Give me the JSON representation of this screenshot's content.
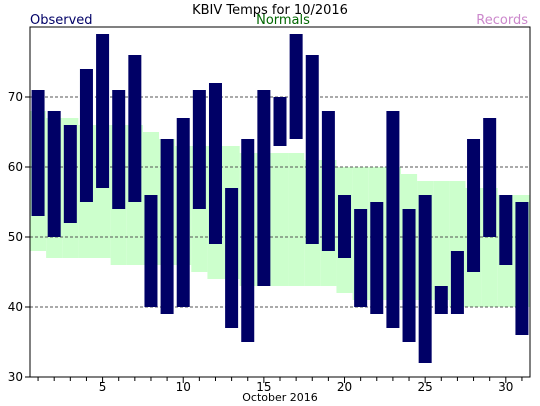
{
  "chart_data": {
    "type": "bar",
    "title": "KBIV Temps for 10/2016",
    "legend": [
      "Observed",
      "Normals",
      "Records"
    ],
    "xlabel": "October 2016",
    "ylabel": "",
    "ylim": [
      30,
      80
    ],
    "yticks": [
      30,
      40,
      50,
      60,
      70
    ],
    "xlim": [
      0.5,
      31.5
    ],
    "xticks": [
      5,
      10,
      15,
      20,
      25,
      30
    ],
    "grid": "dashed horizontal",
    "colors": {
      "observed": "#000066",
      "normals_fill": "#ccffcc",
      "normals_text": "#006600",
      "records_text": "#cc88cc"
    },
    "days": [
      1,
      2,
      3,
      4,
      5,
      6,
      7,
      8,
      9,
      10,
      11,
      12,
      13,
      14,
      15,
      16,
      17,
      18,
      19,
      20,
      21,
      22,
      23,
      24,
      25,
      26,
      27,
      28,
      29,
      30,
      31
    ],
    "series": [
      {
        "name": "Observed",
        "low": [
          53,
          50,
          52,
          55,
          57,
          54,
          55,
          40,
          39,
          40,
          54,
          49,
          37,
          35,
          43,
          63,
          64,
          49,
          48,
          47,
          40,
          39,
          37,
          35,
          32,
          39,
          39,
          45,
          50,
          46,
          36
        ],
        "high": [
          71,
          68,
          66,
          74,
          79,
          71,
          76,
          56,
          64,
          67,
          71,
          72,
          57,
          64,
          71,
          70,
          79,
          76,
          68,
          56,
          54,
          55,
          68,
          54,
          56,
          43,
          48,
          64,
          67,
          56,
          55
        ]
      },
      {
        "name": "Normals",
        "low": [
          48,
          47,
          47,
          47,
          47,
          46,
          46,
          46,
          46,
          46,
          45,
          44,
          44,
          43,
          43,
          43,
          43,
          43,
          43,
          42,
          41,
          41,
          41,
          41,
          41,
          41,
          40,
          40,
          40,
          40,
          40
        ],
        "high": [
          68,
          67,
          67,
          66,
          66,
          66,
          66,
          65,
          64,
          63,
          63,
          63,
          63,
          62,
          62,
          62,
          62,
          61,
          61,
          60,
          60,
          60,
          60,
          59,
          58,
          58,
          58,
          57,
          57,
          56,
          56
        ]
      }
    ]
  }
}
